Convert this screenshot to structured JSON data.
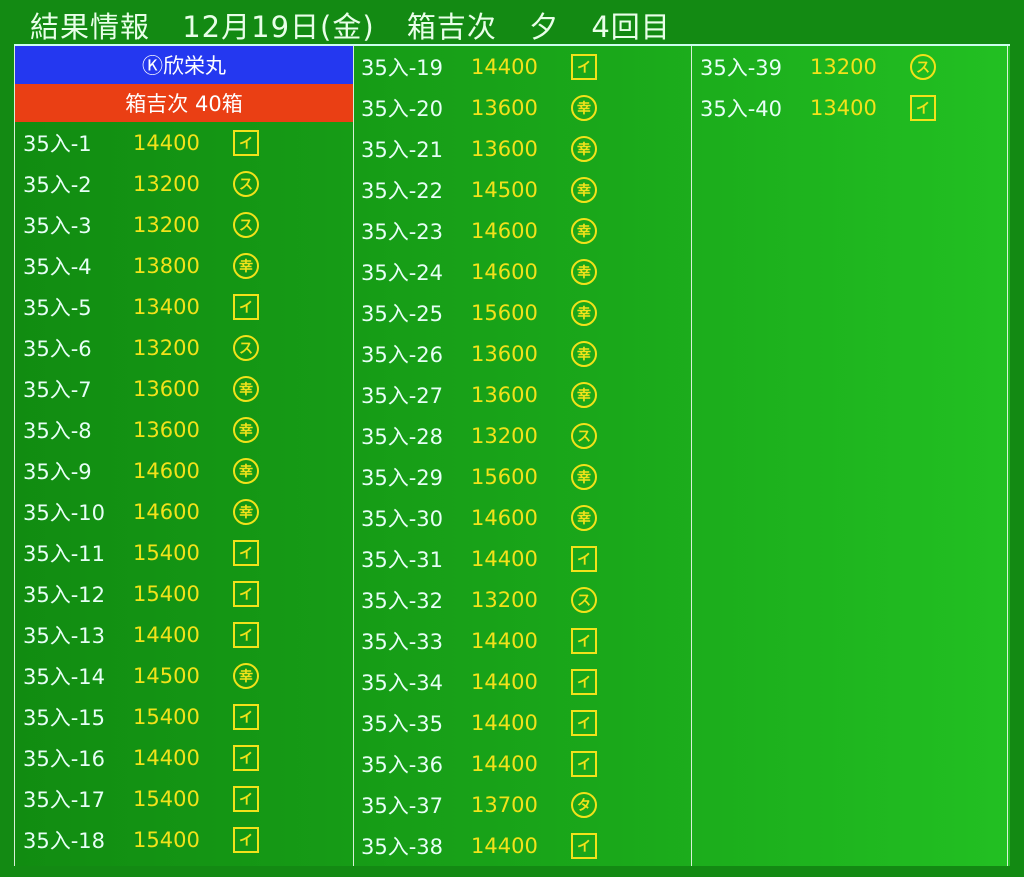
{
  "header": {
    "title": "結果情報",
    "date": "12月19日(金)",
    "market": "箱吉次",
    "session": "夕",
    "round": "4回目"
  },
  "boat_name": "Ⓚ欣栄丸",
  "lot_summary": "箱吉次 40箱",
  "colors": {
    "background": "#138a13",
    "boat_bar": "#2438f0",
    "summary_bar": "#ea3f14",
    "price": "#f2e21a",
    "lot": "#e6fff6"
  },
  "marks": {
    "イ": "square",
    "ス": "circle",
    "幸": "circle",
    "タ": "circle"
  },
  "results": [
    {
      "lot": "35入-1",
      "price": "14400",
      "buyer": "イ"
    },
    {
      "lot": "35入-2",
      "price": "13200",
      "buyer": "ス"
    },
    {
      "lot": "35入-3",
      "price": "13200",
      "buyer": "ス"
    },
    {
      "lot": "35入-4",
      "price": "13800",
      "buyer": "幸"
    },
    {
      "lot": "35入-5",
      "price": "13400",
      "buyer": "イ"
    },
    {
      "lot": "35入-6",
      "price": "13200",
      "buyer": "ス"
    },
    {
      "lot": "35入-7",
      "price": "13600",
      "buyer": "幸"
    },
    {
      "lot": "35入-8",
      "price": "13600",
      "buyer": "幸"
    },
    {
      "lot": "35入-9",
      "price": "14600",
      "buyer": "幸"
    },
    {
      "lot": "35入-10",
      "price": "14600",
      "buyer": "幸"
    },
    {
      "lot": "35入-11",
      "price": "15400",
      "buyer": "イ"
    },
    {
      "lot": "35入-12",
      "price": "15400",
      "buyer": "イ"
    },
    {
      "lot": "35入-13",
      "price": "14400",
      "buyer": "イ"
    },
    {
      "lot": "35入-14",
      "price": "14500",
      "buyer": "幸"
    },
    {
      "lot": "35入-15",
      "price": "15400",
      "buyer": "イ"
    },
    {
      "lot": "35入-16",
      "price": "14400",
      "buyer": "イ"
    },
    {
      "lot": "35入-17",
      "price": "15400",
      "buyer": "イ"
    },
    {
      "lot": "35入-18",
      "price": "15400",
      "buyer": "イ"
    },
    {
      "lot": "35入-19",
      "price": "14400",
      "buyer": "イ"
    },
    {
      "lot": "35入-20",
      "price": "13600",
      "buyer": "幸"
    },
    {
      "lot": "35入-21",
      "price": "13600",
      "buyer": "幸"
    },
    {
      "lot": "35入-22",
      "price": "14500",
      "buyer": "幸"
    },
    {
      "lot": "35入-23",
      "price": "14600",
      "buyer": "幸"
    },
    {
      "lot": "35入-24",
      "price": "14600",
      "buyer": "幸"
    },
    {
      "lot": "35入-25",
      "price": "15600",
      "buyer": "幸"
    },
    {
      "lot": "35入-26",
      "price": "13600",
      "buyer": "幸"
    },
    {
      "lot": "35入-27",
      "price": "13600",
      "buyer": "幸"
    },
    {
      "lot": "35入-28",
      "price": "13200",
      "buyer": "ス"
    },
    {
      "lot": "35入-29",
      "price": "15600",
      "buyer": "幸"
    },
    {
      "lot": "35入-30",
      "price": "14600",
      "buyer": "幸"
    },
    {
      "lot": "35入-31",
      "price": "14400",
      "buyer": "イ"
    },
    {
      "lot": "35入-32",
      "price": "13200",
      "buyer": "ス"
    },
    {
      "lot": "35入-33",
      "price": "14400",
      "buyer": "イ"
    },
    {
      "lot": "35入-34",
      "price": "14400",
      "buyer": "イ"
    },
    {
      "lot": "35入-35",
      "price": "14400",
      "buyer": "イ"
    },
    {
      "lot": "35入-36",
      "price": "14400",
      "buyer": "イ"
    },
    {
      "lot": "35入-37",
      "price": "13700",
      "buyer": "タ"
    },
    {
      "lot": "35入-38",
      "price": "14400",
      "buyer": "イ"
    },
    {
      "lot": "35入-39",
      "price": "13200",
      "buyer": "ス"
    },
    {
      "lot": "35入-40",
      "price": "13400",
      "buyer": "イ"
    }
  ]
}
